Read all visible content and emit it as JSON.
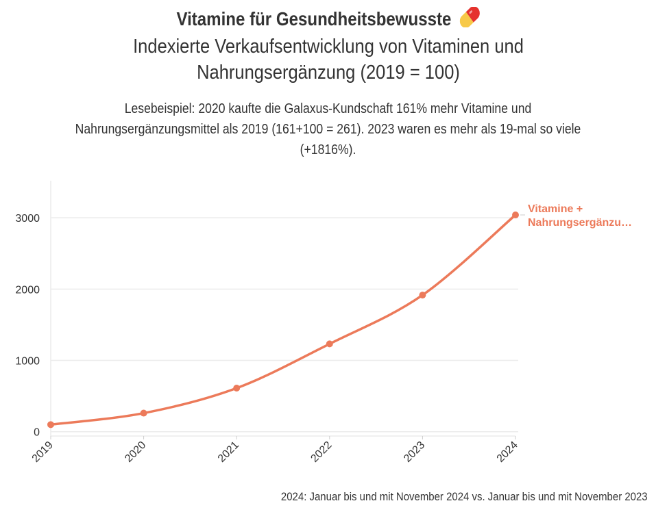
{
  "header": {
    "title": "Vitamine für Gesundheitsbewusste",
    "title_icon": "pill-icon",
    "subtitle": "Indexierte Verkaufsentwicklung von Vitaminen und Nahrungsergänzung (2019 = 100)",
    "description": "Lesebeispiel: 2020 kaufte die Galaxus-Kundschaft 161% mehr Vitamine und Nahrungsergänzungsmittel als 2019 (161+100 = 261). 2023 waren es mehr als 19-mal so viele (+1816%)."
  },
  "footnote": "2024: Januar bis und mit November 2024 vs. Januar bis und mit November 2023",
  "colors": {
    "series": "#ec7a5a",
    "grid": "#ebebeb",
    "axis": "#cccccc",
    "text": "#333333",
    "pill_red": "#e5322d",
    "pill_yellow": "#f7c948"
  },
  "chart_data": {
    "type": "line",
    "x": [
      "2019",
      "2020",
      "2021",
      "2022",
      "2023",
      "2024"
    ],
    "series": [
      {
        "name": "Vitamine + Nahrungsergänzu…",
        "name_lines": [
          "Vitamine +",
          "Nahrungsergänzu…"
        ],
        "values": [
          100,
          261,
          612,
          1232,
          1916,
          3040
        ]
      }
    ],
    "yticks": [
      0,
      1000,
      2000,
      3000
    ],
    "ytick_labels": [
      "0",
      "1000",
      "2000",
      "3000"
    ],
    "ylim": [
      -60,
      3520
    ],
    "grid": "horizontal",
    "legend": "end-of-line label",
    "xlabel": "",
    "ylabel": ""
  }
}
